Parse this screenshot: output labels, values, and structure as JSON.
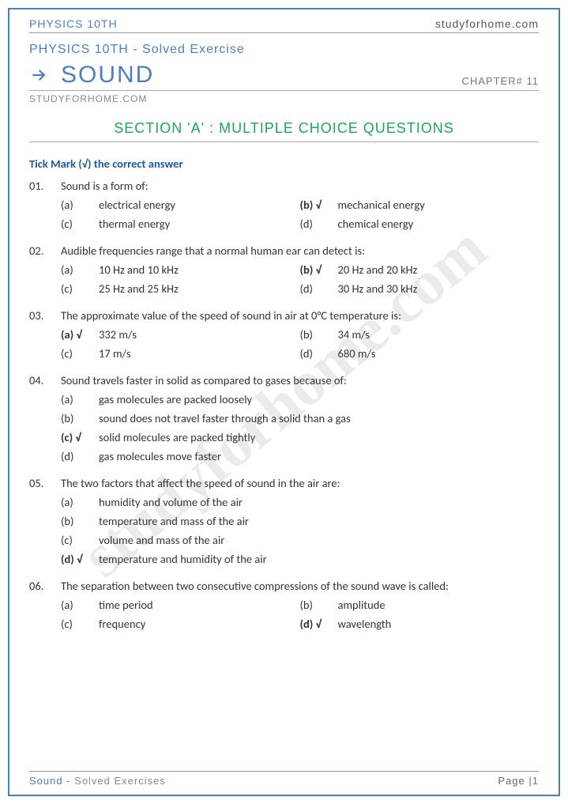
{
  "colors": {
    "primary": "#4a7fc0",
    "accent_green": "#1aaa55",
    "text_blue": "#1a5a9e",
    "body_text": "#333333",
    "muted": "#888888",
    "border": "#999999",
    "watermark": "rgba(0,0,0,0.08)"
  },
  "typography": {
    "heading_font": "Bahnschrift",
    "body_font": "Segoe UI",
    "title_size_pt": 30,
    "section_size_pt": 18,
    "body_size_pt": 14.5
  },
  "watermark": "studyforhome.com",
  "header": {
    "left": "PHYSICS 10TH",
    "right": "studyforhome.com"
  },
  "subtitle": "PHYSICS 10TH - Solved Exercise",
  "title": "SOUND",
  "chapter": "CHAPTER# 11",
  "site": "STUDYFORHOME.COM",
  "section_heading": "SECTION 'A' : MULTIPLE CHOICE QUESTIONS",
  "instruction": "Tick Mark (√) the correct answer",
  "questions": [
    {
      "num": "01.",
      "text": "Sound is a form of:",
      "layout": "2col",
      "opts": [
        {
          "l": "(a)",
          "t": "electrical energy",
          "c": false
        },
        {
          "l": "(b) √",
          "t": "mechanical energy",
          "c": true
        },
        {
          "l": "(c)",
          "t": "thermal energy",
          "c": false
        },
        {
          "l": "(d)",
          "t": "chemical energy",
          "c": false
        }
      ]
    },
    {
      "num": "02.",
      "text": "Audible frequencies range that a normal human ear can detect is:",
      "layout": "2col",
      "opts": [
        {
          "l": "(a)",
          "t": "10 Hz and 10 kHz",
          "c": false
        },
        {
          "l": "(b) √",
          "t": "20 Hz and 20 kHz",
          "c": true
        },
        {
          "l": "(c)",
          "t": "25 Hz and 25 kHz",
          "c": false
        },
        {
          "l": "(d)",
          "t": "30 Hz and 30 kHz",
          "c": false
        }
      ]
    },
    {
      "num": "03.",
      "text": "The approximate value of the speed of sound in air at 0°C temperature is:",
      "layout": "2col",
      "opts": [
        {
          "l": "(a) √",
          "t": "332 m/s",
          "c": true
        },
        {
          "l": "(b)",
          "t": "34 m/s",
          "c": false
        },
        {
          "l": "(c)",
          "t": "17 m/s",
          "c": false
        },
        {
          "l": "(d)",
          "t": "680 m/s",
          "c": false
        }
      ]
    },
    {
      "num": "04.",
      "text": "Sound travels faster in solid as compared to gases because of:",
      "layout": "1col",
      "opts": [
        {
          "l": "(a)",
          "t": "gas molecules are packed loosely",
          "c": false
        },
        {
          "l": "(b)",
          "t": "sound does not travel faster through a solid than a gas",
          "c": false
        },
        {
          "l": "(c) √",
          "t": "solid molecules are packed tightly",
          "c": true
        },
        {
          "l": "(d)",
          "t": "gas molecules move faster",
          "c": false
        }
      ]
    },
    {
      "num": "05.",
      "text": "The two factors that affect the speed of sound in the air are:",
      "layout": "1col",
      "opts": [
        {
          "l": "(a)",
          "t": "humidity and volume of the air",
          "c": false
        },
        {
          "l": "(b)",
          "t": "temperature and mass of the air",
          "c": false
        },
        {
          "l": "(c)",
          "t": "volume and mass of the air",
          "c": false
        },
        {
          "l": "(d) √",
          "t": "temperature and humidity of the air",
          "c": true
        }
      ]
    },
    {
      "num": "06.",
      "text": "The separation between two consecutive compressions of the sound wave is called:",
      "layout": "2col",
      "opts": [
        {
          "l": "(a)",
          "t": "time period",
          "c": false
        },
        {
          "l": "(b)",
          "t": "amplitude",
          "c": false
        },
        {
          "l": "(c)",
          "t": "frequency",
          "c": false
        },
        {
          "l": "(d) √",
          "t": "wavelength",
          "c": true
        }
      ]
    }
  ],
  "footer": {
    "left_a": "Sound",
    "left_b": " - Solved Exercises",
    "right_a": "Page |",
    "right_b": "1"
  }
}
